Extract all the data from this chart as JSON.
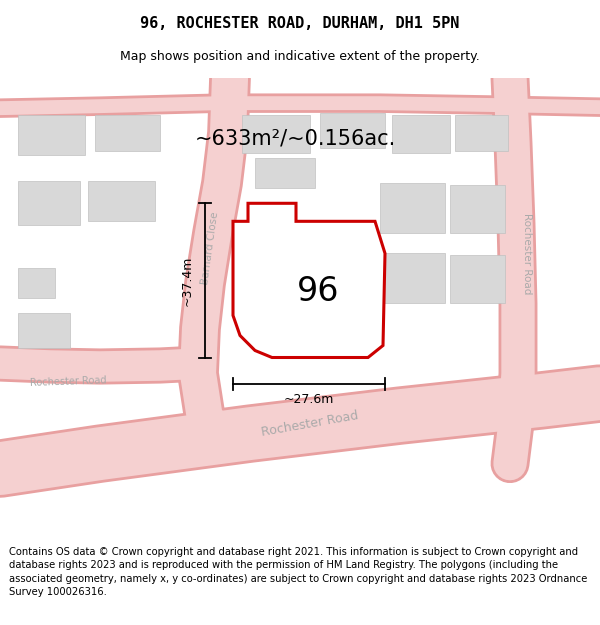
{
  "title": "96, ROCHESTER ROAD, DURHAM, DH1 5PN",
  "subtitle": "Map shows position and indicative extent of the property.",
  "area_label": "~633m²/~0.156ac.",
  "number_label": "96",
  "width_label": "~27.6m",
  "height_label": "~37.4m",
  "bg_color": "#f2f2f2",
  "road_fill": "#f5d0d0",
  "road_edge": "#e8a0a0",
  "building_fill": "#d8d8d8",
  "building_edge": "#c0c0c0",
  "plot_fill": "#ffffff",
  "plot_edge": "#cc0000",
  "plot_lw": 2.2,
  "footer_text": "Contains OS data © Crown copyright and database right 2021. This information is subject to Crown copyright and database rights 2023 and is reproduced with the permission of HM Land Registry. The polygons (including the associated geometry, namely x, y co-ordinates) are subject to Crown copyright and database rights 2023 Ordnance Survey 100026316.",
  "title_fontsize": 11,
  "subtitle_fontsize": 9,
  "footer_fontsize": 7.2,
  "street_label_color": "#aaaaaa",
  "dim_color": "#000000"
}
